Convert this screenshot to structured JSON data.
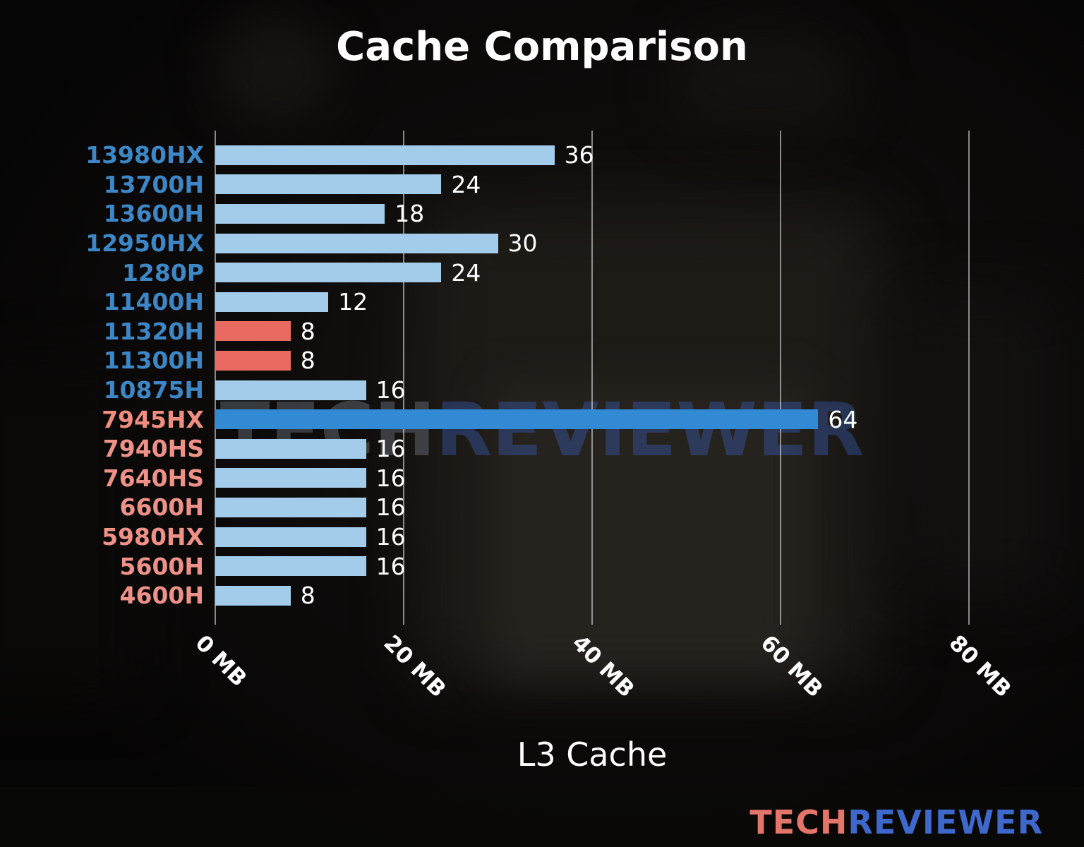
{
  "title": "Cache Comparison",
  "chart_data": {
    "type": "bar",
    "orientation": "horizontal",
    "title": "Cache Comparison",
    "xlabel": "L3 Cache",
    "units": "MB",
    "xlim": [
      0,
      80
    ],
    "grid": true,
    "categories": [
      "13980HX",
      "13700H",
      "13600H",
      "12950HX",
      "1280P",
      "11400H",
      "11320H",
      "11300H",
      "10875H",
      "7945HX",
      "7940HS",
      "7640HS",
      "6600H",
      "5980HX",
      "5600H",
      "4600H"
    ],
    "values": [
      36,
      24,
      18,
      30,
      24,
      12,
      8,
      8,
      16,
      64,
      16,
      16,
      16,
      16,
      16,
      8
    ],
    "xticks": [
      {
        "label": "0 MB",
        "value": 0
      },
      {
        "label": "20 MB",
        "value": 20
      },
      {
        "label": "40 MB",
        "value": 40
      },
      {
        "label": "60 MB",
        "value": 60
      },
      {
        "label": "80 MB",
        "value": 80
      }
    ],
    "bar_colors": [
      "#a3cbea",
      "#a3cbea",
      "#a3cbea",
      "#a3cbea",
      "#a3cbea",
      "#a3cbea",
      "#e96a60",
      "#e96a60",
      "#a3cbea",
      "#338ad4",
      "#a3cbea",
      "#a3cbea",
      "#a3cbea",
      "#a3cbea",
      "#a3cbea",
      "#a3cbea"
    ],
    "label_colors": [
      "#3d87c6",
      "#3d87c6",
      "#3d87c6",
      "#3d87c6",
      "#3d87c6",
      "#3d87c6",
      "#3d87c6",
      "#3d87c6",
      "#3d87c6",
      "#ee8d80",
      "#ee9188",
      "#ee9188",
      "#ee9188",
      "#ee9188",
      "#ee9188",
      "#ee9188"
    ],
    "value_label_color": "#ffffff",
    "grid_color": "#dedede",
    "highlighted_category": "7945HX",
    "palette": {
      "bar_default": "#a3cbea",
      "bar_highlight": "#338ad4",
      "bar_red": "#e96a60",
      "label_intel": "#3d87c6",
      "label_amd": "#ee9188"
    }
  },
  "watermark": {
    "tech": "TECH",
    "reviewer": "REVIEWER",
    "tech_color": "#97a6b8",
    "reviewer_color": "#3e6ad2"
  },
  "logo": {
    "tech": "TECH",
    "reviewer": "REVIEWER",
    "tech_color": "#e4756b",
    "reviewer_color": "#3e68cc"
  }
}
